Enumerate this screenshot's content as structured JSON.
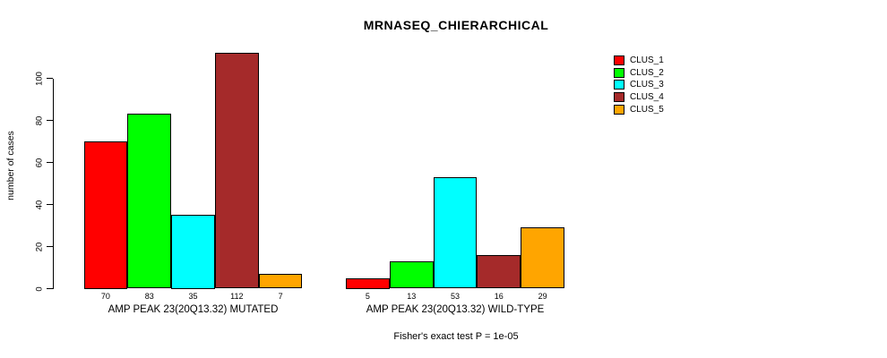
{
  "title": "MRNASEQ_CHIERARCHICAL",
  "footer": "Fisher's exact test P = 1e-05",
  "chart_data": {
    "type": "bar",
    "title": "MRNASEQ_CHIERARCHICAL",
    "xlabel": "",
    "ylabel": "number of cases",
    "ylim": [
      0,
      117
    ],
    "yticks": [
      0,
      20,
      40,
      60,
      80,
      100
    ],
    "grid": false,
    "legend_position": "upper-right",
    "categories": [
      "AMP PEAK 23(20Q13.32) MUTATED",
      "AMP PEAK 23(20Q13.32) WILD-TYPE"
    ],
    "series": [
      {
        "name": "CLUS_1",
        "color": "#FF0000",
        "values": [
          70,
          5
        ]
      },
      {
        "name": "CLUS_2",
        "color": "#00FF00",
        "values": [
          83,
          13
        ]
      },
      {
        "name": "CLUS_3",
        "color": "#00FFFF",
        "values": [
          35,
          53
        ]
      },
      {
        "name": "CLUS_4",
        "color": "#A52A2A",
        "values": [
          112,
          16
        ]
      },
      {
        "name": "CLUS_5",
        "color": "#FFA500",
        "values": [
          7,
          29
        ]
      }
    ],
    "bar_value_labels": [
      [
        70,
        83,
        35,
        112,
        7
      ],
      [
        5,
        13,
        53,
        16,
        29
      ]
    ],
    "annotation": "Fisher's exact test P = 1e-05"
  }
}
